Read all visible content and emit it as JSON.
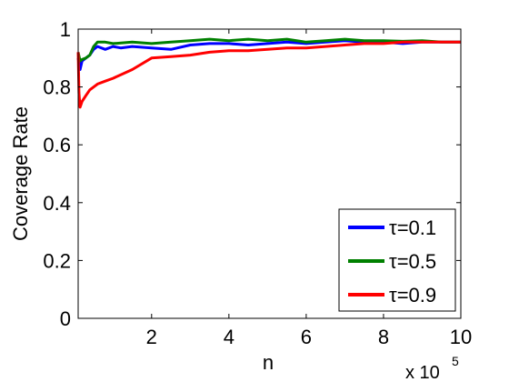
{
  "chart_data": {
    "type": "line",
    "title": "",
    "xlabel": "n",
    "ylabel": "Coverage Rate",
    "x_multiplier": {
      "base": "x 10",
      "exponent": "5"
    },
    "xlim": [
      0.1,
      10
    ],
    "ylim": [
      0,
      1
    ],
    "xticks": [
      2,
      4,
      6,
      8,
      10
    ],
    "yticks": [
      0,
      0.2,
      0.4,
      0.6,
      0.8,
      1
    ],
    "xtick_labels": [
      "2",
      "4",
      "6",
      "8",
      "10"
    ],
    "ytick_labels": [
      "0",
      "0.2",
      "0.4",
      "0.6",
      "0.8",
      "1"
    ],
    "grid": false,
    "legend_position": "bottom-right",
    "series": [
      {
        "name": "τ=0.1",
        "color": "#0000ff",
        "x": [
          0.1,
          0.15,
          0.2,
          0.3,
          0.4,
          0.5,
          0.6,
          0.8,
          1.0,
          1.2,
          1.5,
          2.0,
          2.5,
          3.0,
          3.5,
          4.0,
          4.5,
          5.0,
          5.5,
          6.0,
          6.5,
          7.0,
          7.5,
          8.0,
          8.5,
          9.0,
          9.5,
          10.0
        ],
        "y": [
          0.9,
          0.86,
          0.89,
          0.9,
          0.91,
          0.93,
          0.94,
          0.93,
          0.94,
          0.935,
          0.94,
          0.935,
          0.93,
          0.945,
          0.95,
          0.95,
          0.945,
          0.95,
          0.955,
          0.95,
          0.955,
          0.96,
          0.955,
          0.955,
          0.95,
          0.955,
          0.955,
          0.955
        ]
      },
      {
        "name": "τ=0.5",
        "color": "#008000",
        "x": [
          0.1,
          0.15,
          0.2,
          0.3,
          0.4,
          0.5,
          0.6,
          0.8,
          1.0,
          1.5,
          2.0,
          2.5,
          3.0,
          3.5,
          4.0,
          4.5,
          5.0,
          5.5,
          6.0,
          6.5,
          7.0,
          7.5,
          8.0,
          8.5,
          9.0,
          9.5,
          10.0
        ],
        "y": [
          0.92,
          0.89,
          0.895,
          0.9,
          0.91,
          0.94,
          0.955,
          0.955,
          0.95,
          0.955,
          0.95,
          0.955,
          0.96,
          0.965,
          0.96,
          0.965,
          0.96,
          0.965,
          0.955,
          0.96,
          0.965,
          0.96,
          0.96,
          0.958,
          0.96,
          0.955,
          0.955
        ]
      },
      {
        "name": "τ=0.9",
        "color": "#ff0000",
        "x": [
          0.1,
          0.12,
          0.15,
          0.2,
          0.3,
          0.4,
          0.6,
          0.8,
          1.0,
          1.5,
          2.0,
          2.5,
          3.0,
          3.5,
          4.0,
          4.5,
          5.0,
          5.5,
          6.0,
          6.5,
          7.0,
          7.5,
          8.0,
          8.5,
          9.0,
          9.5,
          10.0
        ],
        "y": [
          0.92,
          0.78,
          0.73,
          0.75,
          0.77,
          0.79,
          0.81,
          0.82,
          0.83,
          0.86,
          0.9,
          0.905,
          0.91,
          0.92,
          0.925,
          0.925,
          0.93,
          0.935,
          0.935,
          0.94,
          0.945,
          0.95,
          0.95,
          0.955,
          0.955,
          0.955,
          0.955
        ]
      }
    ]
  }
}
